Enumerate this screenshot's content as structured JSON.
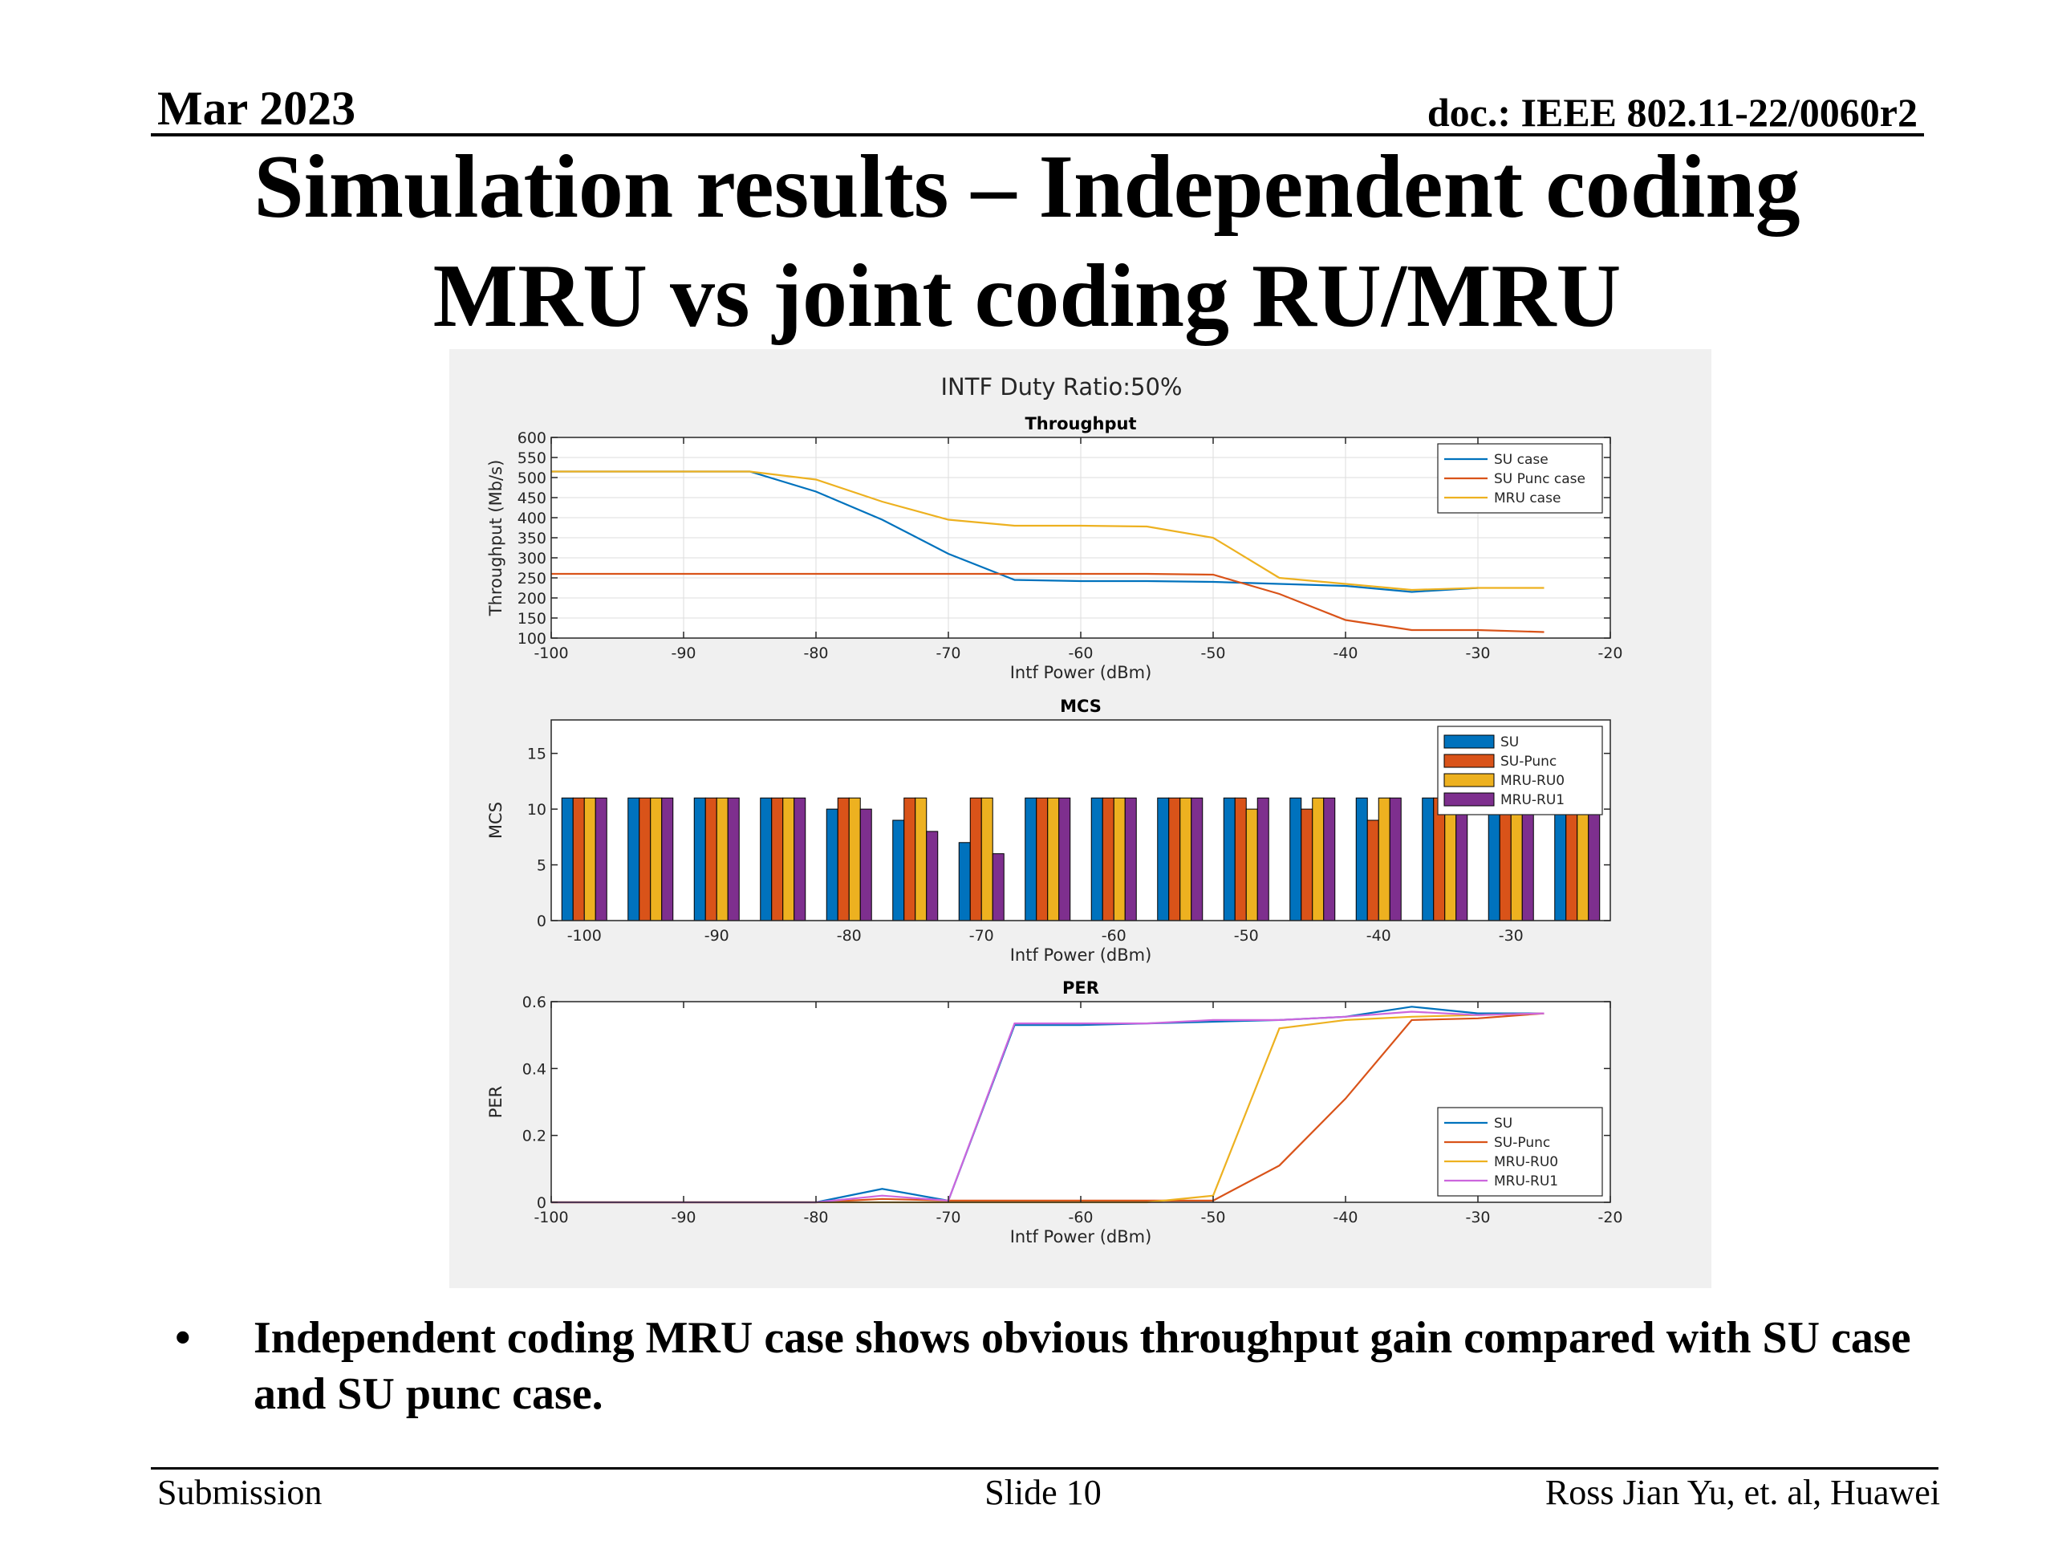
{
  "header": {
    "date": "Mar 2023",
    "doc": "doc.: IEEE 802.11-22/0060r2"
  },
  "slide": {
    "title_line1": "Simulation results – Independent coding",
    "title_line2": "MRU vs joint coding RU/MRU",
    "bullet_marker": "•",
    "bullet_text": "Independent coding MRU case shows obvious throughput gain compared with SU case and SU punc case."
  },
  "footer": {
    "left": "Submission",
    "center": "Slide 10",
    "right": "Ross Jian Yu, et. al, Huawei"
  },
  "chart_data": {
    "suptitle": "INTF Duty Ratio:50%",
    "charts": [
      {
        "type": "line",
        "title": "Throughput",
        "xlabel": "Intf Power (dBm)",
        "ylabel": "Throughput (Mb/s)",
        "xlim": [
          -100,
          -20
        ],
        "ylim": [
          100,
          600
        ],
        "xticks": [
          -100,
          -90,
          -80,
          -70,
          -60,
          -50,
          -40,
          -30,
          -20
        ],
        "yticks": [
          100,
          150,
          200,
          250,
          300,
          350,
          400,
          450,
          500,
          550,
          600
        ],
        "grid": true,
        "legend_position": "top-right",
        "x": [
          -100,
          -95,
          -90,
          -85,
          -80,
          -75,
          -70,
          -65,
          -60,
          -55,
          -50,
          -45,
          -40,
          -35,
          -30,
          -25
        ],
        "series": [
          {
            "name": "SU case",
            "color": "#0072BD",
            "values": [
              515,
              515,
              515,
              515,
              465,
              395,
              310,
              245,
              242,
              242,
              240,
              235,
              230,
              215,
              225,
              null
            ]
          },
          {
            "name": "SU Punc case",
            "color": "#D95319",
            "values": [
              260,
              260,
              260,
              260,
              260,
              260,
              260,
              260,
              260,
              260,
              258,
              210,
              145,
              120,
              120,
              115
            ]
          },
          {
            "name": "MRU case",
            "color": "#EDB120",
            "values": [
              515,
              515,
              515,
              515,
              495,
              440,
              395,
              380,
              380,
              378,
              350,
              250,
              235,
              220,
              225,
              225
            ]
          }
        ]
      },
      {
        "type": "bar",
        "title": "MCS",
        "xlabel": "Intf Power (dBm)",
        "ylabel": "MCS",
        "ylim": [
          0,
          18
        ],
        "yticks": [
          0,
          5,
          10,
          15
        ],
        "xtick_labels": [
          "-100",
          "-90",
          "-80",
          "-70",
          "-60",
          "-50",
          "-40",
          "-30"
        ],
        "grid": false,
        "legend_position": "top-right",
        "x": [
          -100,
          -95,
          -90,
          -85,
          -80,
          -75,
          -70,
          -65,
          -60,
          -55,
          -50,
          -45,
          -40,
          -35,
          -30,
          -25
        ],
        "series": [
          {
            "name": "SU",
            "color": "#0072BD",
            "values": [
              11,
              11,
              11,
              11,
              10,
              9,
              7,
              11,
              11,
              11,
              11,
              11,
              11,
              11,
              11,
              11
            ]
          },
          {
            "name": "SU-Punc",
            "color": "#D95319",
            "values": [
              11,
              11,
              11,
              11,
              11,
              11,
              11,
              11,
              11,
              11,
              11,
              10,
              9,
              11,
              11,
              11
            ]
          },
          {
            "name": "MRU-RU0",
            "color": "#EDB120",
            "values": [
              11,
              11,
              11,
              11,
              11,
              11,
              11,
              11,
              11,
              11,
              10,
              11,
              11,
              10,
              11,
              11
            ]
          },
          {
            "name": "MRU-RU1",
            "color": "#7E2F8E",
            "values": [
              11,
              11,
              11,
              11,
              10,
              8,
              6,
              11,
              11,
              11,
              11,
              11,
              11,
              11,
              11,
              11
            ]
          }
        ]
      },
      {
        "type": "line",
        "title": "PER",
        "xlabel": "Intf Power (dBm)",
        "ylabel": "PER",
        "xlim": [
          -100,
          -20
        ],
        "ylim": [
          0,
          0.6
        ],
        "xticks": [
          -100,
          -90,
          -80,
          -70,
          -60,
          -50,
          -40,
          -30,
          -20
        ],
        "yticks": [
          0,
          0.2,
          0.4,
          0.6
        ],
        "grid": false,
        "legend_position": "bottom-right",
        "x": [
          -100,
          -95,
          -90,
          -85,
          -80,
          -75,
          -70,
          -65,
          -60,
          -55,
          -50,
          -45,
          -40,
          -35,
          -30,
          -25
        ],
        "series": [
          {
            "name": "SU",
            "color": "#0072BD",
            "values": [
              0,
              0,
              0,
              0,
              0,
              0.04,
              0.005,
              0.53,
              0.53,
              0.535,
              0.54,
              0.545,
              0.555,
              0.585,
              0.565,
              0.565
            ]
          },
          {
            "name": "SU-Punc",
            "color": "#D95319",
            "values": [
              0,
              0,
              0,
              0,
              0,
              0.01,
              0.005,
              0.005,
              0.005,
              0.005,
              0.005,
              0.11,
              0.31,
              0.545,
              0.55,
              0.565
            ]
          },
          {
            "name": "MRU-RU0",
            "color": "#EDB120",
            "values": [
              0,
              0,
              0,
              0,
              0,
              0,
              0,
              0,
              0,
              0,
              0.02,
              0.52,
              0.545,
              0.555,
              0.56,
              0.565
            ]
          },
          {
            "name": "MRU-RU1",
            "color": "#CC66DD",
            "values": [
              0,
              0,
              0,
              0,
              0,
              0.02,
              0.005,
              0.535,
              0.535,
              0.535,
              0.545,
              0.545,
              0.555,
              0.57,
              0.56,
              0.565
            ]
          }
        ]
      }
    ]
  }
}
